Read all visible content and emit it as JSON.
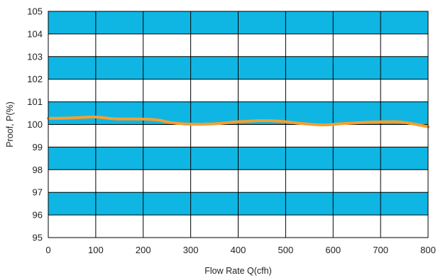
{
  "chart_data": {
    "type": "line",
    "title": "",
    "xlabel": "Flow Rate Q(cfh)",
    "ylabel": "Proof,  P(%)",
    "xlim": [
      0,
      800
    ],
    "ylim": [
      95,
      105
    ],
    "x_ticks": [
      "0",
      "100",
      "200",
      "300",
      "400",
      "500",
      "600",
      "700",
      "800"
    ],
    "y_ticks": [
      "95",
      "96",
      "97",
      "98",
      "99",
      "100",
      "101",
      "102",
      "103",
      "104",
      "105"
    ],
    "grid": true,
    "legend": "none",
    "colors": {
      "band": "#0fb6e3",
      "line": "#f5a030",
      "grid": "#000000"
    },
    "series": [
      {
        "x": [
          0,
          50,
          100,
          140,
          200,
          230,
          260,
          300,
          350,
          400,
          450,
          490,
          530,
          580,
          620,
          680,
          730,
          760,
          800
        ],
        "values": [
          100.27,
          100.29,
          100.33,
          100.25,
          100.24,
          100.2,
          100.08,
          100.01,
          100.03,
          100.12,
          100.17,
          100.14,
          100.05,
          99.98,
          100.04,
          100.1,
          100.12,
          100.06,
          99.9
        ]
      }
    ]
  }
}
